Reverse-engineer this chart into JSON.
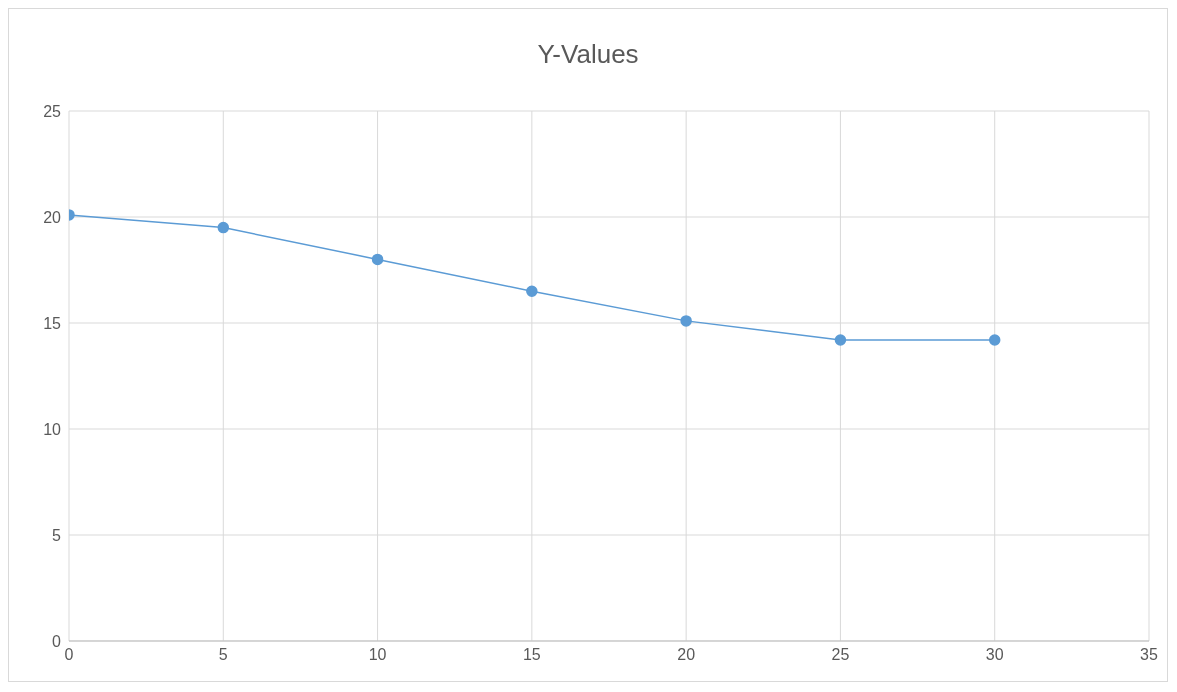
{
  "chart_data": {
    "type": "line",
    "title": "Y-Values",
    "x": [
      0,
      5,
      10,
      15,
      20,
      25,
      30
    ],
    "series": [
      {
        "color": "#5b9bd5",
        "values": [
          20.1,
          19.5,
          18,
          16.5,
          15.1,
          14.2,
          14.2
        ]
      }
    ],
    "xlim": [
      0,
      35
    ],
    "xticks": [
      0,
      5,
      10,
      15,
      20,
      25,
      30,
      35
    ],
    "ylim": [
      0,
      25
    ],
    "yticks": [
      0,
      5,
      10,
      15,
      20,
      25
    ],
    "grid": true,
    "marker": "circle",
    "line_style": "solid",
    "legend": false
  }
}
